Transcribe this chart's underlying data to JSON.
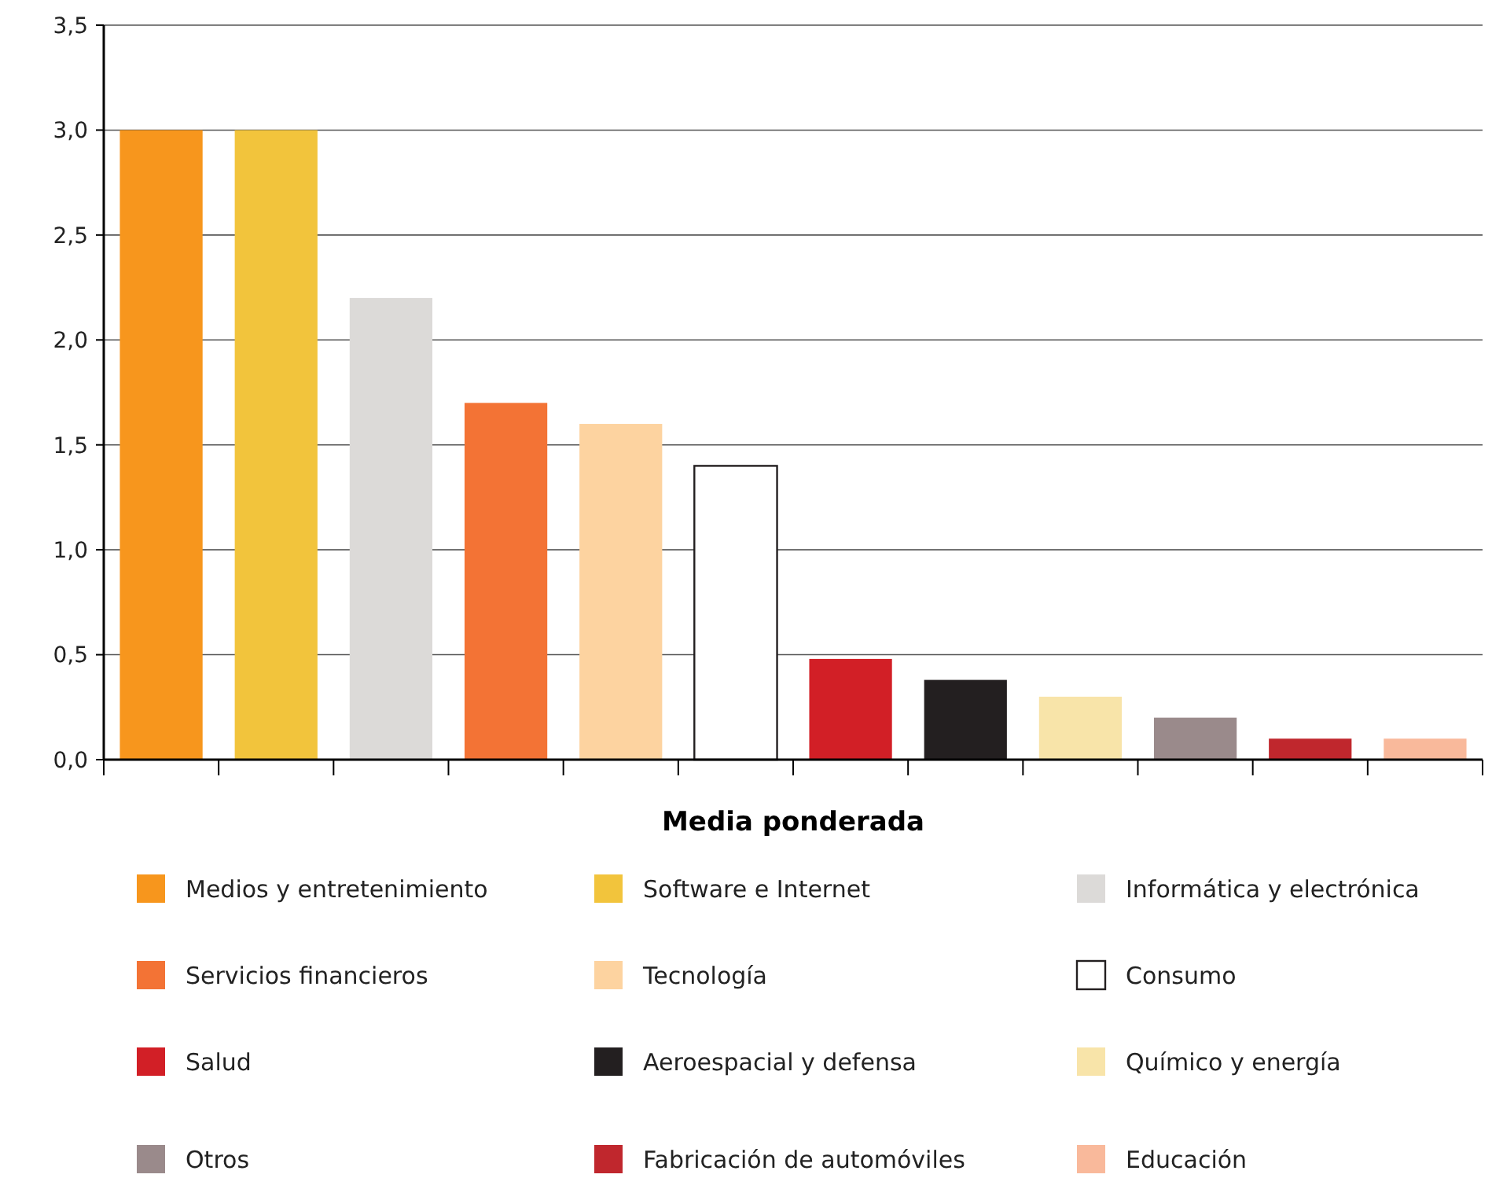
{
  "chart_data": {
    "type": "bar",
    "xlabel": "Media ponderada",
    "categories": [
      null,
      null,
      null,
      null,
      null,
      null,
      null,
      null,
      null,
      null,
      null,
      null
    ],
    "series": [
      {
        "name": "Medios y entretenimiento",
        "color": "#f7961d",
        "values": [
          3.0,
          null,
          null,
          null,
          null,
          null,
          null,
          null,
          null,
          null,
          null,
          null
        ]
      },
      {
        "name": "Software e Internet",
        "color": "#f2c43c",
        "values": [
          null,
          3.0,
          null,
          null,
          null,
          null,
          null,
          null,
          null,
          null,
          null,
          null
        ]
      },
      {
        "name": "Informática y electrónica",
        "color": "#dcdad8",
        "values": [
          null,
          null,
          2.2,
          null,
          null,
          null,
          null,
          null,
          null,
          null,
          null,
          null
        ]
      },
      {
        "name": "Servicios financieros",
        "color": "#f37335",
        "values": [
          null,
          null,
          null,
          1.7,
          null,
          null,
          null,
          null,
          null,
          null,
          null,
          null
        ]
      },
      {
        "name": "Tecnología",
        "color": "#fdd3a0",
        "values": [
          null,
          null,
          null,
          null,
          1.6,
          null,
          null,
          null,
          null,
          null,
          null,
          null
        ]
      },
      {
        "name": "Consumo",
        "color": "#ffffff",
        "values": [
          null,
          null,
          null,
          null,
          null,
          1.4,
          null,
          null,
          null,
          null,
          null,
          null
        ]
      },
      {
        "name": "Salud",
        "color": "#d21f26",
        "values": [
          null,
          null,
          null,
          null,
          null,
          null,
          0.48,
          null,
          null,
          null,
          null,
          null
        ]
      },
      {
        "name": "Aeroespacial y defensa",
        "color": "#231f20",
        "values": [
          null,
          null,
          null,
          null,
          null,
          null,
          null,
          0.38,
          null,
          null,
          null,
          null
        ]
      },
      {
        "name": "Químico y energía",
        "color": "#f8e4a9",
        "values": [
          null,
          null,
          null,
          null,
          null,
          null,
          null,
          null,
          0.3,
          null,
          null,
          null
        ]
      },
      {
        "name": "Otros",
        "color": "#9a8a8b",
        "values": [
          null,
          null,
          null,
          null,
          null,
          null,
          null,
          null,
          null,
          0.2,
          null,
          null
        ]
      },
      {
        "name": "Fabricación de automóviles",
        "color": "#c0272d",
        "values": [
          null,
          null,
          null,
          null,
          null,
          null,
          null,
          null,
          null,
          null,
          0.1,
          null
        ]
      },
      {
        "name": "Educación",
        "color": "#f9b99b",
        "values": [
          null,
          null,
          null,
          null,
          null,
          null,
          null,
          null,
          null,
          null,
          null,
          0.1
        ]
      }
    ],
    "ylim": [
      0,
      3.5
    ],
    "yticks": [
      {
        "value": 0,
        "label": "0,0"
      },
      {
        "value": 0.5,
        "label": "0,5"
      },
      {
        "value": 1,
        "label": "1,0"
      },
      {
        "value": 1.5,
        "label": "1,5"
      },
      {
        "value": 2,
        "label": "2,0"
      },
      {
        "value": 2.5,
        "label": "2,5"
      },
      {
        "value": 3,
        "label": "3,0"
      },
      {
        "value": 3.5,
        "label": "3,5"
      }
    ],
    "grid": "y",
    "legend": "bottom"
  }
}
